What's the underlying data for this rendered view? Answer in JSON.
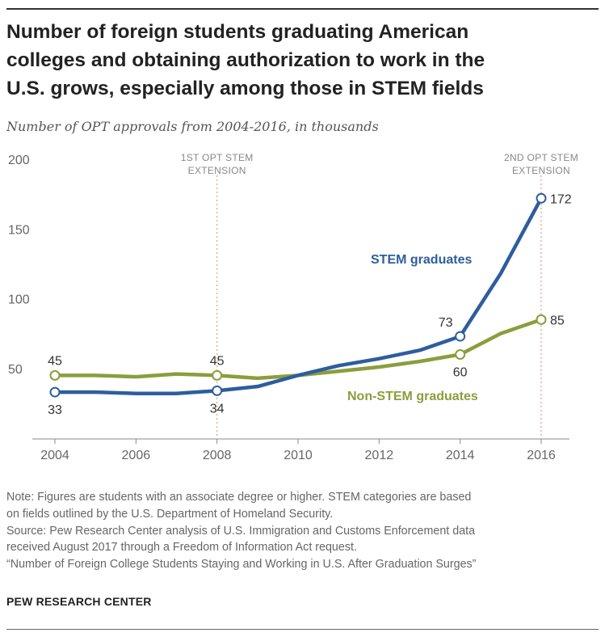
{
  "figure": {
    "title_lines": [
      "Number of foreign students graduating American",
      "colleges and obtaining authorization to work in the",
      "U.S. grows, especially among those in STEM fields"
    ],
    "subtitle": "Number of OPT approvals from 2004-2016, in thousands",
    "notes": [
      "Note: Figures are students with an associate degree or higher. STEM categories are based",
      "on fields outlined by the U.S. Department of Homeland Security.",
      "Source: Pew Research Center analysis of U.S. Immigration and Customs Enforcement data",
      "received August 2017 through a Freedom of Information Act request.",
      "“Number of Foreign College Students Staying and Working in U.S. After Graduation Surges”"
    ],
    "brand": "PEW RESEARCH CENTER"
  },
  "chart_data": {
    "type": "line",
    "title": "Number of foreign students graduating American colleges and obtaining authorization to work in the U.S. grows, especially among those in STEM fields",
    "subtitle": "Number of OPT approvals from 2004-2016, in thousands",
    "x": [
      2004,
      2005,
      2006,
      2007,
      2008,
      2009,
      2010,
      2011,
      2012,
      2013,
      2014,
      2015,
      2016
    ],
    "x_ticks": [
      2004,
      2006,
      2008,
      2010,
      2012,
      2014,
      2016
    ],
    "x_tick_labels": [
      "2004",
      "2006",
      "2008",
      "2010",
      "2012",
      "2014",
      "2016"
    ],
    "y_ticks": [
      50,
      100,
      150,
      200
    ],
    "y_tick_labels": [
      "50",
      "100",
      "150",
      "200"
    ],
    "ylim": [
      0,
      200
    ],
    "xlim": [
      2004,
      2016
    ],
    "grid": false,
    "series": [
      {
        "name": "STEM graduates",
        "color": "#2e5d9e",
        "values": [
          33,
          33,
          32,
          32,
          34,
          37,
          45,
          52,
          57,
          63,
          73,
          118,
          172
        ],
        "labeled_points": [
          {
            "year": 2004,
            "value": 33,
            "label": "33",
            "position": "below"
          },
          {
            "year": 2008,
            "value": 34,
            "label": "34",
            "position": "below"
          },
          {
            "year": 2014,
            "value": 73,
            "label": "73",
            "position": "above-left"
          },
          {
            "year": 2016,
            "value": 172,
            "label": "172",
            "position": "right"
          }
        ]
      },
      {
        "name": "Non-STEM graduates",
        "color": "#8a9e3c",
        "values": [
          45,
          45,
          44,
          46,
          45,
          43,
          45,
          48,
          51,
          55,
          60,
          75,
          85
        ],
        "labeled_points": [
          {
            "year": 2004,
            "value": 45,
            "label": "45",
            "position": "above"
          },
          {
            "year": 2008,
            "value": 45,
            "label": "45",
            "position": "above"
          },
          {
            "year": 2014,
            "value": 60,
            "label": "60",
            "position": "below"
          },
          {
            "year": 2016,
            "value": 85,
            "label": "85",
            "position": "right"
          }
        ]
      }
    ],
    "annotations": [
      {
        "year": 2008,
        "lines": [
          "1ST OPT STEM",
          "EXTENSION"
        ]
      },
      {
        "year": 2016,
        "lines": [
          "2ND  OPT STEM",
          "EXTENSION"
        ]
      }
    ]
  }
}
